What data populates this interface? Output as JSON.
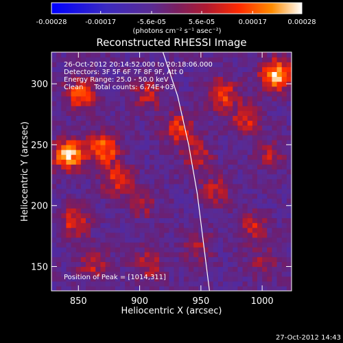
{
  "chart_data": {
    "type": "heatmap",
    "title": "Reconstructed RHESSI Image",
    "xlabel": "Heliocentric X (arcsec)",
    "ylabel": "Heliocentric Y (arcsec)",
    "xlim": [
      828,
      1024
    ],
    "ylim": [
      130,
      326
    ],
    "x_ticks": [
      850,
      900,
      950,
      1000
    ],
    "y_ticks": [
      150,
      200,
      250,
      300
    ],
    "colorbar": {
      "range": [
        -0.00028,
        0.00028
      ],
      "ticks": [
        "-0.00028",
        "-0.00017",
        "-5.6e-05",
        "5.6e-05",
        "0.00017",
        "0.00028"
      ],
      "tick_values": [
        -0.00028,
        -0.00017,
        -5.6e-05,
        5.6e-05,
        0.00017,
        0.00028
      ],
      "units_label": "(photons cm⁻² s⁻¹ asec⁻²)",
      "colors": [
        "#0000ff",
        "#4b2a9e",
        "#5a2b93",
        "#b01a30",
        "#ff2a00",
        "#ff8c00",
        "#ffffff"
      ]
    },
    "info_lines": [
      "26-Oct-2012 20:14:52.000 to 20:18:06.000",
      "Detectors: 3F 5F 6F 7F 8F 9F, Att 0",
      "Energy Range: 25.0 - 50.0 keV",
      "Clean     Total counts: 6.74E+03"
    ],
    "peak_label": "Position of Peak = [1014,311]",
    "limb": [
      [
        919,
        326
      ],
      [
        931,
        290
      ],
      [
        940,
        250
      ],
      [
        947,
        210
      ],
      [
        952,
        170
      ],
      [
        957,
        130
      ]
    ],
    "bright_regions": [
      {
        "x": 840,
        "y": 240,
        "v": 0.00026
      },
      {
        "x": 868,
        "y": 245,
        "v": 0.00022
      },
      {
        "x": 850,
        "y": 290,
        "v": 0.00018
      },
      {
        "x": 880,
        "y": 220,
        "v": 0.00016
      },
      {
        "x": 845,
        "y": 185,
        "v": 0.00015
      },
      {
        "x": 905,
        "y": 290,
        "v": 0.00013
      },
      {
        "x": 930,
        "y": 262,
        "v": 0.00016
      },
      {
        "x": 945,
        "y": 240,
        "v": 0.00012
      },
      {
        "x": 965,
        "y": 290,
        "v": 0.00018
      },
      {
        "x": 1010,
        "y": 305,
        "v": 0.00028
      },
      {
        "x": 985,
        "y": 270,
        "v": 0.00014
      },
      {
        "x": 960,
        "y": 210,
        "v": 0.00012
      },
      {
        "x": 1005,
        "y": 240,
        "v": 0.00011
      },
      {
        "x": 990,
        "y": 180,
        "v": 0.00012
      },
      {
        "x": 900,
        "y": 200,
        "v": 0.0001
      },
      {
        "x": 860,
        "y": 150,
        "v": 0.00012
      },
      {
        "x": 905,
        "y": 150,
        "v": 0.00012
      },
      {
        "x": 945,
        "y": 165,
        "v": 0.0001
      },
      {
        "x": 1000,
        "y": 150,
        "v": 9e-05
      }
    ]
  },
  "footer_timestamp": "27-Oct-2012 14:43"
}
